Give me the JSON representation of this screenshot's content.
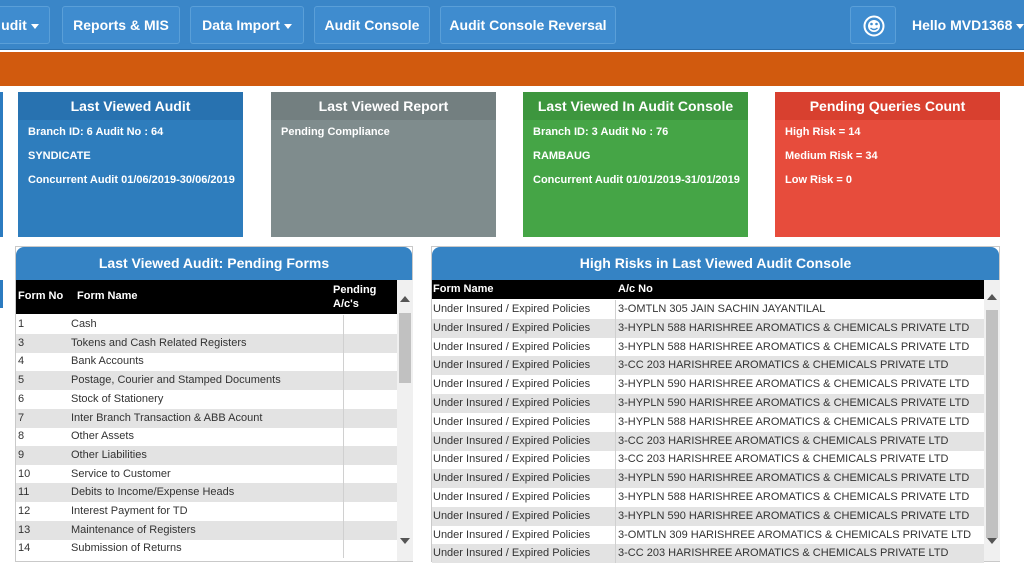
{
  "nav": {
    "audit_label": "udit",
    "reports_label": "Reports & MIS",
    "data_import_label": "Data Import",
    "audit_console_label": "Audit Console",
    "audit_console_reversal_label": "Audit Console Reversal",
    "hello_label": "Hello MVD1368"
  },
  "cards": [
    {
      "title": "Last Viewed Audit",
      "lines": [
        "Branch ID: 6 Audit No : 64",
        "SYNDICATE",
        "Concurrent Audit 01/06/2019-30/06/2019"
      ],
      "color": "#2e7dbd",
      "header_color": "#2872b0"
    },
    {
      "title": "Last Viewed Report",
      "lines": [
        "Pending Compliance"
      ],
      "color": "#7f8c8d",
      "header_color": "#737f80"
    },
    {
      "title": "Last Viewed In Audit Console",
      "lines": [
        "Branch ID: 3 Audit No : 76",
        "RAMBAUG",
        "Concurrent Audit 01/01/2019-31/01/2019"
      ],
      "color": "#45a546",
      "header_color": "#3d963e"
    },
    {
      "title": "Pending Queries Count",
      "lines": [
        "High Risk = 14",
        "Medium Risk = 34",
        "Low Risk = 0"
      ],
      "color": "#e74c3c",
      "header_color": "#d8402f"
    }
  ],
  "pending_forms": {
    "title": "Last Viewed Audit: Pending Forms",
    "columns": [
      "Form No",
      "Form Name",
      "Pending A/c's"
    ],
    "rows": [
      [
        "1",
        "Cash"
      ],
      [
        "3",
        "Tokens and Cash Related Registers"
      ],
      [
        "4",
        "Bank Accounts"
      ],
      [
        "5",
        "Postage, Courier and Stamped Documents"
      ],
      [
        "6",
        "Stock of Stationery"
      ],
      [
        "7",
        "Inter Branch Transaction & ABB Acount"
      ],
      [
        "8",
        "Other Assets"
      ],
      [
        "9",
        "Other Liabilities"
      ],
      [
        "10",
        "Service to Customer"
      ],
      [
        "11",
        "Debits to Income/Expense Heads"
      ],
      [
        "12",
        "Interest Payment for TD"
      ],
      [
        "13",
        "Maintenance of Registers"
      ],
      [
        "14",
        "Submission of Returns"
      ]
    ]
  },
  "high_risks": {
    "title": "High Risks in Last Viewed Audit Console",
    "columns": [
      "Form Name",
      "A/c No"
    ],
    "rows": [
      [
        "Under Insured / Expired Policies",
        "3-OMTLN 305 JAIN SACHIN JAYANTILAL"
      ],
      [
        "Under Insured / Expired Policies",
        "3-HYPLN 588 HARISHREE AROMATICS & CHEMICALS PRIVATE LTD"
      ],
      [
        "Under Insured / Expired Policies",
        "3-HYPLN 588 HARISHREE AROMATICS & CHEMICALS PRIVATE LTD"
      ],
      [
        "Under Insured / Expired Policies",
        "3-CC 203 HARISHREE AROMATICS & CHEMICALS PRIVATE LTD"
      ],
      [
        "Under Insured / Expired Policies",
        "3-HYPLN 590 HARISHREE AROMATICS & CHEMICALS PRIVATE LTD"
      ],
      [
        "Under Insured / Expired Policies",
        "3-HYPLN 590 HARISHREE AROMATICS & CHEMICALS PRIVATE LTD"
      ],
      [
        "Under Insured / Expired Policies",
        "3-HYPLN 588 HARISHREE AROMATICS & CHEMICALS PRIVATE LTD"
      ],
      [
        "Under Insured / Expired Policies",
        "3-CC 203 HARISHREE AROMATICS & CHEMICALS PRIVATE LTD"
      ],
      [
        "Under Insured / Expired Policies",
        "3-CC 203 HARISHREE AROMATICS & CHEMICALS PRIVATE LTD"
      ],
      [
        "Under Insured / Expired Policies",
        "3-HYPLN 590 HARISHREE AROMATICS & CHEMICALS PRIVATE LTD"
      ],
      [
        "Under Insured / Expired Policies",
        "3-HYPLN 588 HARISHREE AROMATICS & CHEMICALS PRIVATE LTD"
      ],
      [
        "Under Insured / Expired Policies",
        "3-HYPLN 590 HARISHREE AROMATICS & CHEMICALS PRIVATE LTD"
      ],
      [
        "Under Insured / Expired Policies",
        "3-OMTLN 309 HARISHREE AROMATICS & CHEMICALS PRIVATE LTD"
      ],
      [
        "Under Insured / Expired Policies",
        "3-CC 203 HARISHREE AROMATICS & CHEMICALS PRIVATE LTD"
      ]
    ]
  },
  "icons": {
    "avatar": "gauge-icon",
    "dropdown": "caret-down-icon",
    "scroll_up": "chevron-up-icon",
    "scroll_down": "chevron-down-icon"
  }
}
